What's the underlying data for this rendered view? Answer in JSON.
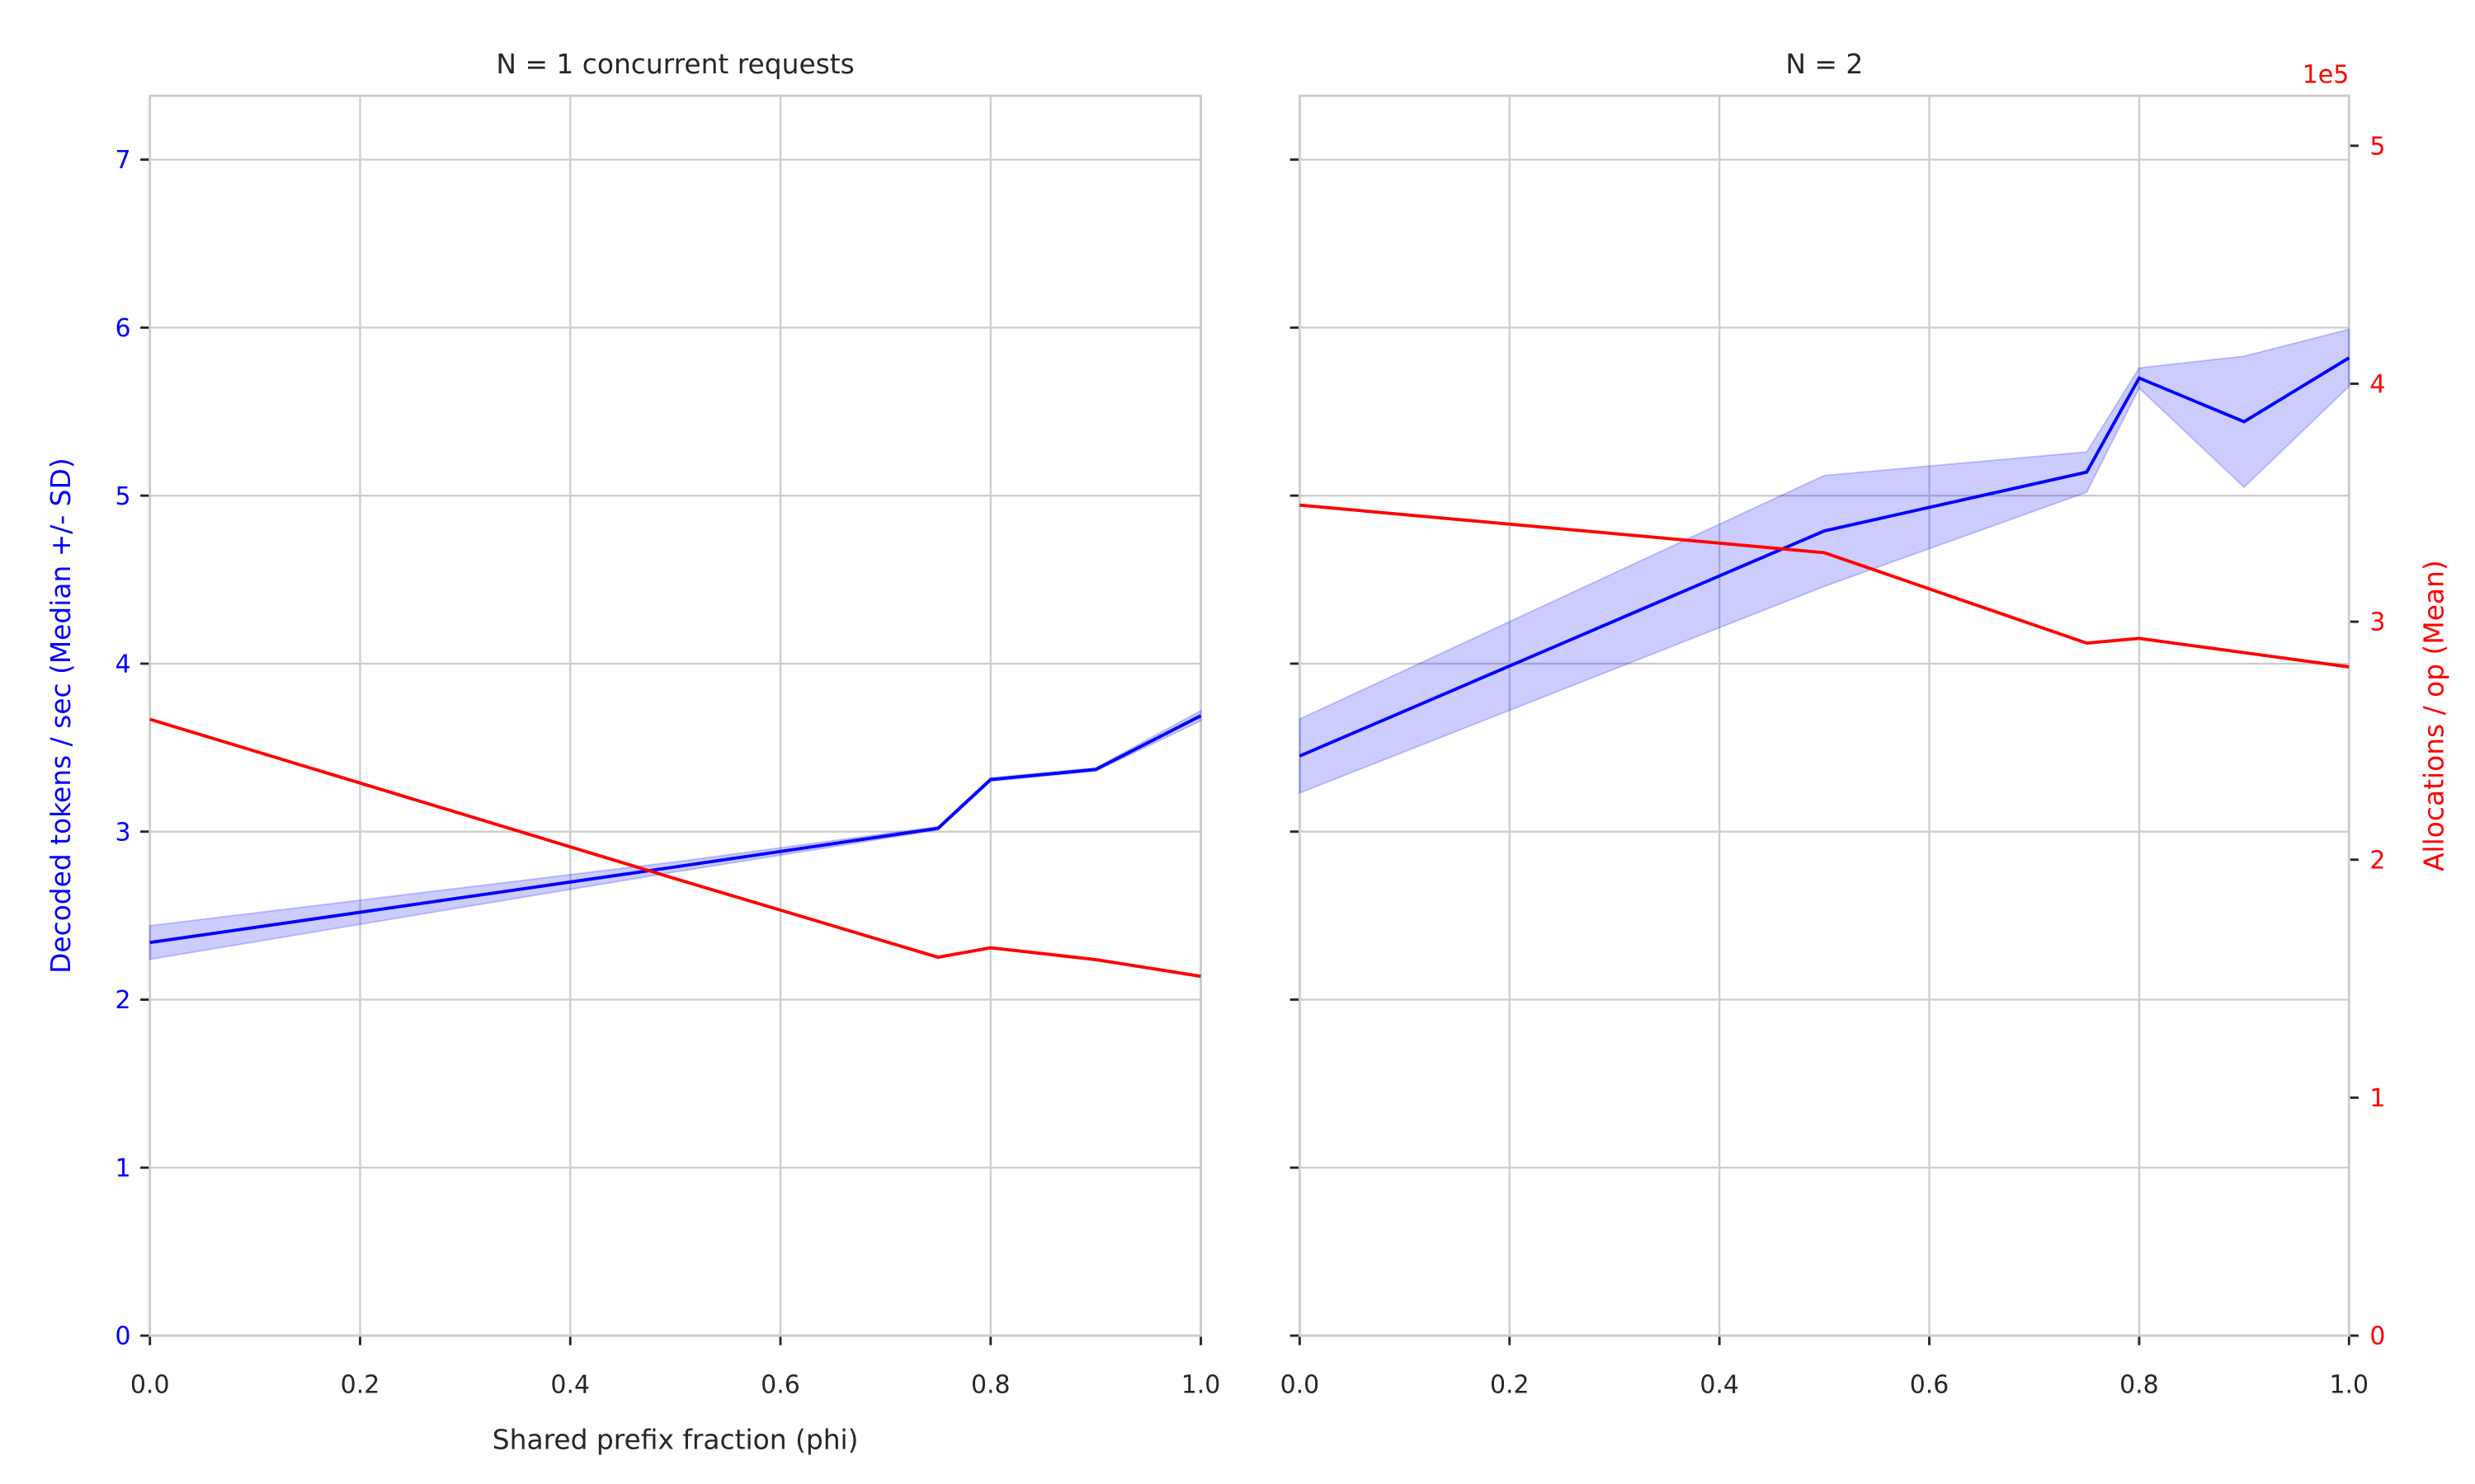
{
  "chart_data": [
    {
      "type": "line",
      "title": "N = 1 concurrent requests",
      "xlabel": "Shared prefix fraction (phi)",
      "ylabel": "Decoded tokens / sec (Median +/- SD)",
      "x": [
        0,
        0.5,
        0.75,
        0.8,
        0.9,
        1.0
      ],
      "series": [
        {
          "color": "#0000ff",
          "values": [
            2.34,
            2.79,
            3.02,
            3.31,
            3.37,
            3.69
          ],
          "sd": [
            0.1,
            0.03,
            0.01,
            0.01,
            0.01,
            0.03
          ]
        },
        {
          "color": "#ff0000",
          "axis": "y2",
          "values": [
            2.59,
            1.92,
            1.59,
            1.63,
            1.58,
            1.51
          ]
        }
      ],
      "xlim": [
        0,
        1.0
      ],
      "xticks": [
        {
          "value": 0,
          "label": "0.0"
        },
        0.2,
        0.4,
        0.6,
        0.8,
        {
          "value": 1.0,
          "label": "1.0"
        }
      ],
      "ylim": [
        0,
        7.38
      ],
      "yticks": [
        0,
        1,
        2,
        3,
        4,
        5,
        6,
        7
      ],
      "ytick_labels": true,
      "ytick_color": "#0000ff",
      "y2lim": [
        0,
        5.21
      ],
      "grid": true
    },
    {
      "type": "line",
      "title": "N = 2",
      "y2label": "Allocations / op (Mean)",
      "y2_offset_label": "1e5",
      "x": [
        0,
        0.5,
        0.75,
        0.8,
        0.9,
        1.0
      ],
      "series": [
        {
          "color": "#0000ff",
          "values": [
            3.45,
            4.79,
            5.14,
            5.7,
            5.44,
            5.82
          ],
          "sd": [
            0.22,
            0.33,
            0.12,
            0.06,
            0.39,
            0.17
          ]
        },
        {
          "color": "#ff0000",
          "axis": "y2",
          "values": [
            3.49,
            3.29,
            2.91,
            2.93,
            2.87,
            2.81
          ]
        }
      ],
      "xlim": [
        0,
        1.0
      ],
      "xticks": [
        {
          "value": 0,
          "label": "0.0"
        },
        0.2,
        0.4,
        0.6,
        0.8,
        {
          "value": 1.0,
          "label": "1.0"
        }
      ],
      "ylim": [
        0,
        7.38
      ],
      "yticks": [
        0,
        1,
        2,
        3,
        4,
        5,
        6,
        7
      ],
      "ytick_labels": false,
      "y2lim": [
        0,
        5.21
      ],
      "y2ticks": [
        0,
        1,
        2,
        3,
        4,
        5
      ],
      "y2tick_color": "#ff0000",
      "grid": true
    }
  ]
}
